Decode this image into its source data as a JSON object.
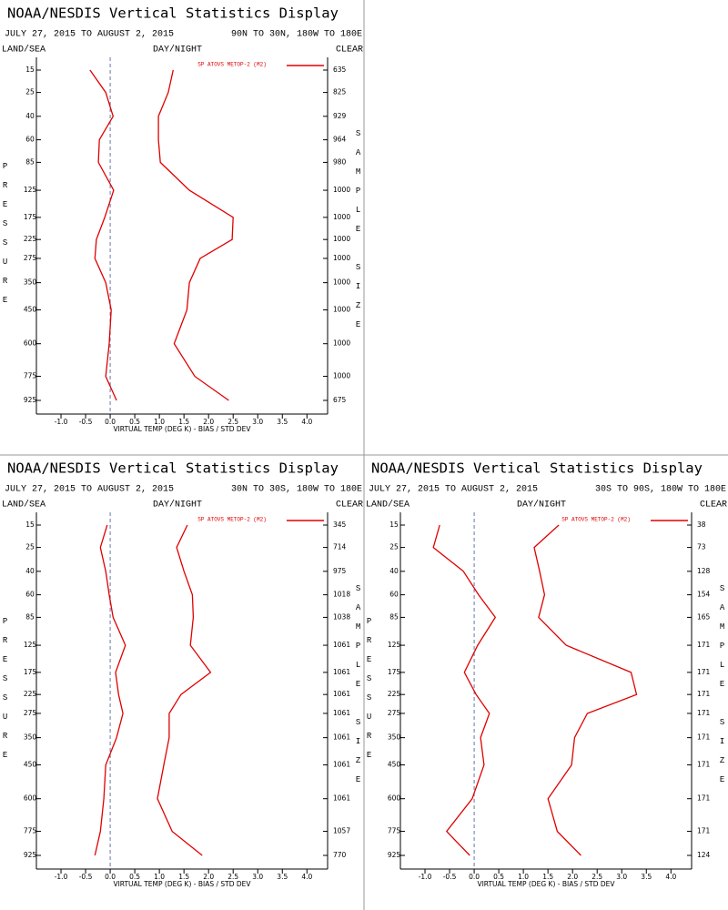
{
  "chart_data": [
    {
      "type": "line",
      "title": "NOAA/NESDIS Vertical Statistics Display",
      "subtitle": "JULY 27, 2015 TO AUGUST 2, 2015",
      "region": "90N TO 30N, 180W TO 180E",
      "left_header": "LAND/SEA",
      "center_header": "DAY/NIGHT",
      "right_header": "CLEAR",
      "ylabel": "PRESSURE",
      "y2label": "SAMPLE SIZE",
      "xlabel": "VIRTUAL TEMP (DEG K) - BIAS / STD DEV",
      "legend": "SP ATOVS METOP-2 (M2)",
      "color": "#e00000",
      "reference_line": 0,
      "y": [
        15,
        25,
        40,
        60,
        85,
        125,
        175,
        225,
        275,
        350,
        450,
        600,
        775,
        925
      ],
      "ylim": [
        15,
        925
      ],
      "yticks": [
        15,
        25,
        40,
        60,
        85,
        125,
        175,
        225,
        275,
        350,
        450,
        600,
        775,
        925
      ],
      "sample_size": [
        635,
        825,
        929,
        964,
        980,
        1000,
        1000,
        1000,
        1000,
        1000,
        1000,
        1000,
        1000,
        675
      ],
      "xlim": [
        -1.5,
        4.42
      ],
      "xticks": [
        {
          "value": -1,
          "label": "-1.0"
        },
        -0.5,
        {
          "value": 0,
          "label": "0.0"
        },
        0.5,
        {
          "value": 1,
          "label": "1.0"
        },
        1.5,
        {
          "value": 2,
          "label": "2.0"
        },
        2.5,
        {
          "value": 3,
          "label": "3.0"
        },
        3.5,
        {
          "value": 4,
          "label": "4.0"
        }
      ],
      "series": [
        {
          "values": [
            -0.41,
            -0.09,
            0.06,
            -0.22,
            -0.24,
            0.07,
            -0.11,
            -0.28,
            -0.31,
            -0.09,
            0.02,
            -0.02,
            -0.09,
            0.13
          ]
        },
        {
          "values": [
            1.28,
            1.18,
            0.98,
            0.98,
            1.02,
            1.61,
            2.5,
            2.48,
            1.83,
            1.61,
            1.56,
            1.3,
            1.72,
            2.41
          ]
        }
      ]
    },
    {
      "type": "line",
      "title": "NOAA/NESDIS Vertical Statistics Display",
      "subtitle": "JULY 27, 2015 TO AUGUST 2, 2015",
      "region": "30N TO 30S, 180W TO 180E",
      "left_header": "LAND/SEA",
      "center_header": "DAY/NIGHT",
      "right_header": "CLEAR",
      "ylabel": "PRESSURE",
      "y2label": "SAMPLE SIZE",
      "xlabel": "VIRTUAL TEMP (DEG K) - BIAS / STD DEV",
      "legend": "SP ATOVS METOP-2 (M2)",
      "color": "#e00000",
      "reference_line": 0,
      "y": [
        15,
        25,
        40,
        60,
        85,
        125,
        175,
        225,
        275,
        350,
        450,
        600,
        775,
        925
      ],
      "ylim": [
        15,
        925
      ],
      "yticks": [
        15,
        25,
        40,
        60,
        85,
        125,
        175,
        225,
        275,
        350,
        450,
        600,
        775,
        925
      ],
      "sample_size": [
        345,
        714,
        975,
        1018,
        1038,
        1061,
        1061,
        1061,
        1061,
        1061,
        1061,
        1061,
        1057,
        770
      ],
      "xlim": [
        -1.5,
        4.42
      ],
      "xticks": [
        {
          "value": -1,
          "label": "-1.0"
        },
        -0.5,
        {
          "value": 0,
          "label": "0.0"
        },
        0.5,
        {
          "value": 1,
          "label": "1.0"
        },
        1.5,
        {
          "value": 2,
          "label": "2.0"
        },
        2.5,
        {
          "value": 3,
          "label": "3.0"
        },
        3.5,
        {
          "value": 4,
          "label": "4.0"
        }
      ],
      "series": [
        {
          "values": [
            -0.06,
            -0.2,
            -0.09,
            -0.02,
            0.06,
            0.31,
            0.11,
            0.17,
            0.26,
            0.13,
            -0.09,
            -0.13,
            -0.2,
            -0.31
          ]
        },
        {
          "values": [
            1.57,
            1.35,
            1.5,
            1.67,
            1.69,
            1.63,
            2.04,
            1.44,
            1.2,
            1.2,
            1.09,
            0.96,
            1.26,
            1.87
          ]
        }
      ]
    },
    {
      "type": "line",
      "title": "NOAA/NESDIS Vertical Statistics Display",
      "subtitle": "JULY 27, 2015 TO AUGUST 2, 2015",
      "region": "30S TO 90S, 180W TO 180E",
      "left_header": "LAND/SEA",
      "center_header": "DAY/NIGHT",
      "right_header": "CLEAR",
      "ylabel": "PRESSURE",
      "y2label": "SAMPLE SIZE",
      "xlabel": "VIRTUAL TEMP (DEG K) - BIAS / STD DEV",
      "legend": "SP ATOVS METOP-2 (M2)",
      "color": "#e00000",
      "reference_line": 0,
      "y": [
        15,
        25,
        40,
        60,
        85,
        125,
        175,
        225,
        275,
        350,
        450,
        600,
        775,
        925
      ],
      "ylim": [
        15,
        925
      ],
      "yticks": [
        15,
        25,
        40,
        60,
        85,
        125,
        175,
        225,
        275,
        350,
        450,
        600,
        775,
        925
      ],
      "sample_size": [
        38,
        73,
        128,
        154,
        165,
        171,
        171,
        171,
        171,
        171,
        171,
        171,
        171,
        124
      ],
      "xlim": [
        -1.5,
        4.42
      ],
      "xticks": [
        {
          "value": -1,
          "label": "-1.0"
        },
        -0.5,
        {
          "value": 0,
          "label": "0.0"
        },
        0.5,
        {
          "value": 1,
          "label": "1.0"
        },
        1.5,
        {
          "value": 2,
          "label": "2.0"
        },
        2.5,
        {
          "value": 3,
          "label": "3.0"
        },
        3.5,
        {
          "value": 4,
          "label": "4.0"
        }
      ],
      "series": [
        {
          "values": [
            -0.7,
            -0.83,
            -0.22,
            0.09,
            0.43,
            0.07,
            -0.2,
            0.04,
            0.31,
            0.13,
            0.2,
            -0.04,
            -0.56,
            -0.09
          ]
        },
        {
          "values": [
            1.72,
            1.22,
            1.33,
            1.43,
            1.31,
            1.87,
            3.19,
            3.3,
            2.3,
            2.04,
            1.98,
            1.5,
            1.69,
            2.17
          ]
        }
      ]
    }
  ]
}
